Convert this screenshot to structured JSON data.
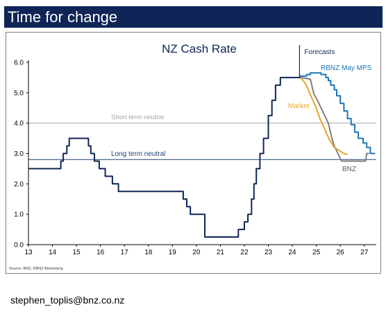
{
  "slide": {
    "title": "Time for change",
    "footer_email": "stephen_toplis@bnz.co.nz"
  },
  "chart_data": {
    "type": "line",
    "title": "NZ Cash Rate",
    "source": "Source: BNZ, RBNZ Bloomberg",
    "xlim": [
      13,
      27.5
    ],
    "ylim": [
      0,
      6
    ],
    "x_ticks": [
      13,
      14,
      15,
      16,
      17,
      18,
      19,
      20,
      21,
      22,
      23,
      24,
      25,
      26,
      27
    ],
    "y_ticks": [
      "0.0",
      "1.0",
      "2.0",
      "3.0",
      "4.0",
      "5.0",
      "6.0"
    ],
    "grid": false,
    "legend": "none",
    "annotations": {
      "forecasts": "Forecasts",
      "forecasts_x": 24.3,
      "rbnz": "RBNZ May MPS",
      "market": "Market",
      "bnz": "BNZ",
      "short_term": "Short term neutral",
      "long_term": "Long term neutral"
    },
    "reference_lines": [
      {
        "label": "Short term neutral",
        "y": 4.0,
        "color": "#a6a6a6"
      },
      {
        "label": "Long term neutral",
        "y": 2.8,
        "color": "#1f3f73"
      }
    ],
    "series": [
      {
        "name": "",
        "color": "#0f2557",
        "step": true,
        "points": [
          [
            13.0,
            2.5
          ],
          [
            14.35,
            2.75
          ],
          [
            14.45,
            3.0
          ],
          [
            14.6,
            3.25
          ],
          [
            14.7,
            3.5
          ],
          [
            15.5,
            3.25
          ],
          [
            15.6,
            3.0
          ],
          [
            15.75,
            2.75
          ],
          [
            15.95,
            2.5
          ],
          [
            16.2,
            2.25
          ],
          [
            16.5,
            2.0
          ],
          [
            16.75,
            1.75
          ],
          [
            19.45,
            1.5
          ],
          [
            19.6,
            1.25
          ],
          [
            19.75,
            1.0
          ],
          [
            20.35,
            0.25
          ],
          [
            21.75,
            0.5
          ],
          [
            22.0,
            0.75
          ],
          [
            22.15,
            1.0
          ],
          [
            22.3,
            1.5
          ],
          [
            22.4,
            2.0
          ],
          [
            22.5,
            2.5
          ],
          [
            22.65,
            3.0
          ],
          [
            22.8,
            3.5
          ],
          [
            23.0,
            4.25
          ],
          [
            23.15,
            4.75
          ],
          [
            23.3,
            5.25
          ],
          [
            23.5,
            5.5
          ],
          [
            24.35,
            5.5
          ]
        ]
      },
      {
        "name": "RBNZ May MPS",
        "color": "#1a75b5",
        "step": true,
        "points": [
          [
            24.3,
            5.55
          ],
          [
            24.6,
            5.6
          ],
          [
            24.75,
            5.65
          ],
          [
            25.2,
            5.6
          ],
          [
            25.4,
            5.5
          ],
          [
            25.5,
            5.4
          ],
          [
            25.6,
            5.25
          ],
          [
            25.75,
            5.1
          ],
          [
            25.85,
            4.9
          ],
          [
            26.0,
            4.65
          ],
          [
            26.15,
            4.4
          ],
          [
            26.3,
            4.15
          ],
          [
            26.45,
            3.95
          ],
          [
            26.6,
            3.7
          ],
          [
            26.75,
            3.5
          ],
          [
            26.95,
            3.35
          ],
          [
            27.1,
            3.2
          ],
          [
            27.25,
            3.0
          ],
          [
            27.45,
            3.0
          ]
        ]
      },
      {
        "name": "BNZ",
        "color": "#7f7f7f",
        "step": false,
        "points": [
          [
            24.35,
            5.5
          ],
          [
            24.75,
            5.45
          ],
          [
            24.9,
            4.95
          ],
          [
            25.05,
            4.75
          ],
          [
            25.2,
            4.5
          ],
          [
            25.35,
            4.25
          ],
          [
            25.5,
            4.0
          ],
          [
            25.65,
            3.5
          ],
          [
            25.75,
            3.25
          ],
          [
            25.9,
            3.0
          ],
          [
            26.05,
            2.75
          ],
          [
            27.05,
            2.75
          ],
          [
            27.1,
            3.0
          ],
          [
            27.2,
            3.0
          ]
        ]
      },
      {
        "name": "Market",
        "color": "#e8a325",
        "step": false,
        "points": [
          [
            24.35,
            5.5
          ],
          [
            24.55,
            5.3
          ],
          [
            24.8,
            4.85
          ],
          [
            25.0,
            4.5
          ],
          [
            25.15,
            4.15
          ],
          [
            25.35,
            3.8
          ],
          [
            25.55,
            3.45
          ],
          [
            25.75,
            3.2
          ],
          [
            25.95,
            3.1
          ],
          [
            26.15,
            3.0
          ],
          [
            26.3,
            2.97
          ]
        ]
      }
    ]
  }
}
